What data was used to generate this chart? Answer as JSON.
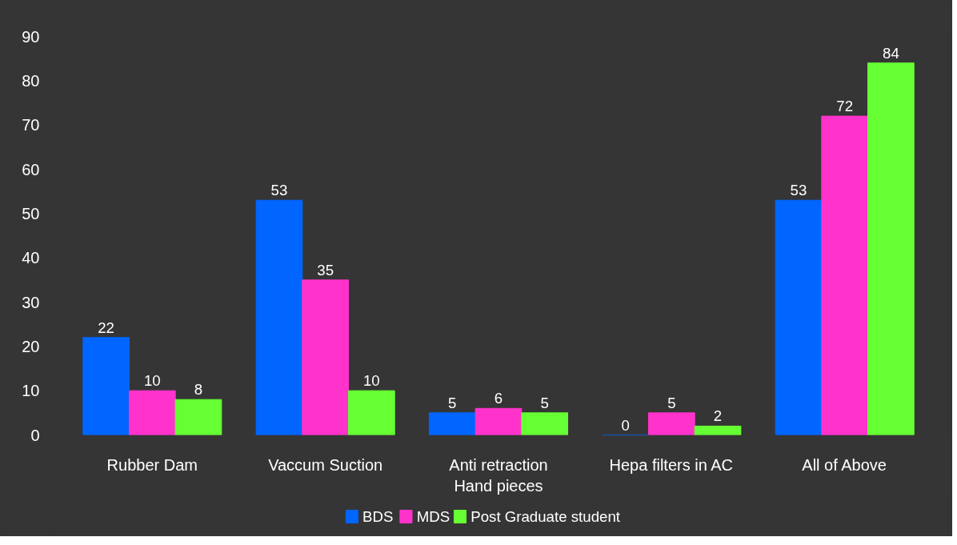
{
  "chart_data": {
    "type": "bar",
    "categories": [
      "Rubber Dam",
      "Vaccum Suction",
      "Anti retraction\nHand pieces",
      "Hepa filters in AC",
      "All of Above"
    ],
    "series": [
      {
        "name": "BDS",
        "color": "#0066ff",
        "values": [
          22,
          53,
          5,
          0,
          53
        ]
      },
      {
        "name": "MDS",
        "color": "#ff33cc",
        "values": [
          10,
          35,
          6,
          5,
          72
        ]
      },
      {
        "name": "Post Graduate student",
        "color": "#66ff33",
        "values": [
          8,
          10,
          5,
          2,
          84
        ]
      }
    ],
    "ylim": [
      0,
      90
    ],
    "yticks": [
      0,
      10,
      20,
      30,
      40,
      50,
      60,
      70,
      80,
      90
    ],
    "data_labels": true,
    "legend": "bottom",
    "grid": false
  }
}
